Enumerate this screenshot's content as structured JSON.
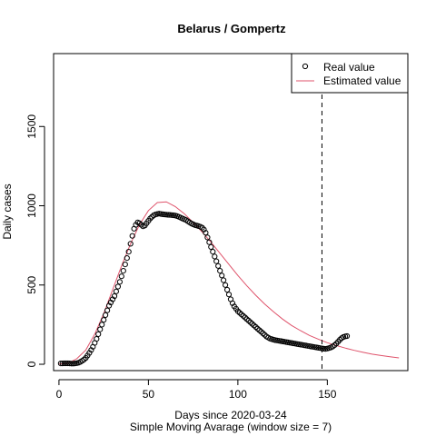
{
  "chart_data": {
    "type": "line",
    "title": "Belarus / Gompertz",
    "xlabel": "Days since 2020-03-24",
    "xlabel2": "Simple Moving Avarage (window size = 7)",
    "ylabel": "Daily cases",
    "xlim": [
      -3,
      195
    ],
    "ylim": [
      -40,
      1960
    ],
    "x_ticks": [
      0,
      50,
      100,
      150
    ],
    "y_ticks": [
      0,
      500,
      1000,
      1500
    ],
    "vline_x": 147,
    "legend": {
      "position": "top-right",
      "entries": [
        {
          "label": "Real value",
          "kind": "point"
        },
        {
          "label": "Estimated value",
          "kind": "line"
        }
      ]
    },
    "colors": {
      "real": "#000000",
      "estimated": "#DF536B",
      "vline": "#000000"
    },
    "series": [
      {
        "name": "Real value",
        "kind": "points",
        "x": [
          1,
          2,
          3,
          4,
          5,
          6,
          7,
          8,
          9,
          10,
          11,
          12,
          13,
          14,
          15,
          16,
          17,
          18,
          19,
          20,
          21,
          22,
          23,
          24,
          25,
          26,
          27,
          28,
          29,
          30,
          31,
          32,
          33,
          34,
          35,
          36,
          37,
          38,
          39,
          40,
          41,
          42,
          43,
          44,
          45,
          46,
          47,
          48,
          49,
          50,
          51,
          52,
          53,
          54,
          55,
          56,
          57,
          58,
          59,
          60,
          61,
          62,
          63,
          64,
          65,
          66,
          67,
          68,
          69,
          70,
          71,
          72,
          73,
          74,
          75,
          76,
          77,
          78,
          79,
          80,
          81,
          82,
          83,
          84,
          85,
          86,
          87,
          88,
          89,
          90,
          91,
          92,
          93,
          94,
          95,
          96,
          97,
          98,
          99,
          100,
          101,
          102,
          103,
          104,
          105,
          106,
          107,
          108,
          109,
          110,
          111,
          112,
          113,
          114,
          115,
          116,
          117,
          118,
          119,
          120,
          121,
          122,
          123,
          124,
          125,
          126,
          127,
          128,
          129,
          130,
          131,
          132,
          133,
          134,
          135,
          136,
          137,
          138,
          139,
          140,
          141,
          142,
          143,
          144,
          145,
          146,
          147,
          148,
          149,
          150,
          151,
          152,
          153,
          154,
          155,
          156,
          157,
          158,
          159,
          160,
          161
        ],
        "y": [
          5,
          5,
          6,
          6,
          6,
          5,
          4,
          4,
          5,
          7,
          10,
          15,
          22,
          30,
          40,
          55,
          72,
          90,
          110,
          135,
          160,
          190,
          220,
          250,
          280,
          310,
          340,
          370,
          390,
          410,
          430,
          460,
          490,
          520,
          555,
          590,
          630,
          670,
          710,
          760,
          810,
          855,
          880,
          895,
          890,
          880,
          870,
          875,
          890,
          905,
          920,
          930,
          940,
          945,
          948,
          950,
          948,
          946,
          945,
          944,
          943,
          942,
          941,
          940,
          938,
          935,
          930,
          925,
          920,
          915,
          910,
          902,
          895,
          888,
          883,
          878,
          875,
          872,
          868,
          862,
          850,
          830,
          800,
          770,
          740,
          710,
          680,
          650,
          620,
          590,
          560,
          530,
          500,
          470,
          440,
          410,
          385,
          365,
          350,
          335,
          325,
          315,
          305,
          295,
          285,
          275,
          265,
          255,
          245,
          235,
          225,
          215,
          205,
          195,
          185,
          175,
          168,
          162,
          158,
          155,
          152,
          150,
          148,
          146,
          144,
          142,
          140,
          138,
          136,
          134,
          132,
          130,
          128,
          126,
          124,
          122,
          120,
          118,
          116,
          114,
          112,
          110,
          108,
          106,
          104,
          102,
          100,
          98,
          97,
          99,
          102,
          106,
          112,
          120,
          130,
          142,
          155,
          165,
          172,
          176,
          178
        ]
      },
      {
        "name": "Estimated value",
        "kind": "line",
        "x": [
          0,
          5,
          10,
          15,
          20,
          25,
          30,
          35,
          40,
          45,
          50,
          55,
          60,
          65,
          70,
          75,
          80,
          85,
          90,
          95,
          100,
          105,
          110,
          115,
          120,
          125,
          130,
          135,
          140,
          145,
          150,
          155,
          160,
          165,
          170,
          175,
          180,
          185,
          190
        ],
        "y": [
          2,
          6,
          35,
          90,
          190,
          320,
          470,
          620,
          760,
          880,
          970,
          1020,
          1025,
          995,
          950,
          895,
          835,
          770,
          700,
          630,
          560,
          495,
          435,
          380,
          330,
          285,
          245,
          212,
          182,
          158,
          136,
          118,
          102,
          88,
          75,
          64,
          55,
          47,
          40
        ]
      }
    ]
  }
}
